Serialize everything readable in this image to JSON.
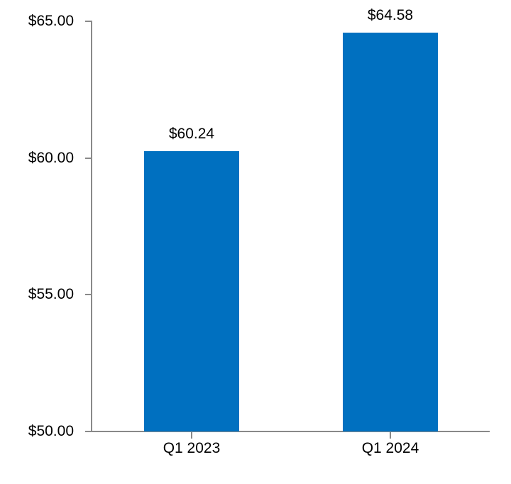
{
  "chart_data": {
    "type": "bar",
    "title": "",
    "xlabel": "",
    "ylabel": "",
    "categories": [
      "Q1 2023",
      "Q1 2024"
    ],
    "values": [
      60.24,
      64.58
    ],
    "value_labels": [
      "$60.24",
      "$64.58"
    ],
    "y_ticks": [
      {
        "value": 65,
        "label": "$65.00"
      },
      {
        "value": 60,
        "label": "$60.00"
      },
      {
        "value": 55,
        "label": "$55.00"
      },
      {
        "value": 50,
        "label": "$50.00"
      }
    ],
    "ylim": [
      50,
      65
    ],
    "grid": false,
    "legend": "none",
    "colors": {
      "bar": "#0070C0",
      "axis": "#898989",
      "text": "#000000",
      "background": "#FFFFFF"
    }
  }
}
